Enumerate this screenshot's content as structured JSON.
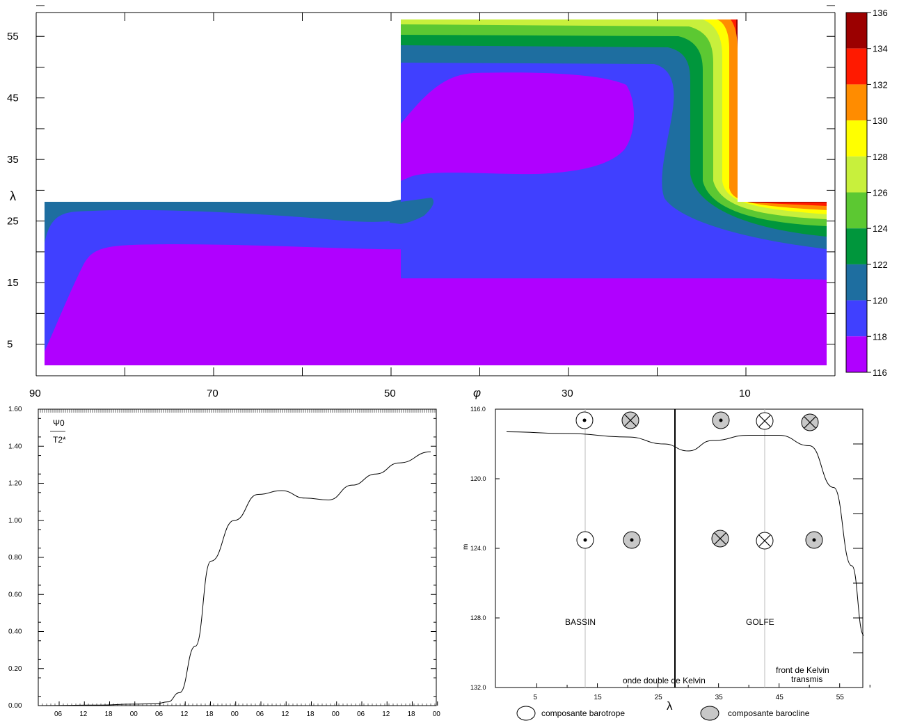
{
  "chart_data": [
    {
      "type": "heatmap",
      "title": "",
      "xlabel": "φ",
      "ylabel": "λ",
      "x_ticks": [
        "90",
        "70",
        "50",
        "30",
        "10"
      ],
      "y_ticks": [
        "55",
        "45",
        "35",
        "25",
        "15",
        "5"
      ],
      "xlim": [
        90,
        2
      ],
      "ylim": [
        1,
        60
      ],
      "colorbar": {
        "levels": [
          "136",
          "134",
          "132",
          "130",
          "128",
          "126",
          "124",
          "122",
          "120",
          "118",
          "116"
        ],
        "colors": [
          "#9b0000",
          "#ff1a00",
          "#ff8c00",
          "#ffff00",
          "#c8f03c",
          "#5cc832",
          "#00963c",
          "#1e6ea0",
          "#4040ff",
          "#b000ff"
        ]
      }
    },
    {
      "type": "line",
      "title": "",
      "ylabel_num": "Ψ0",
      "ylabel_den": "T2*",
      "ylim": [
        0,
        1.6
      ],
      "y_ticks": [
        "1.60",
        "1.40",
        "1.20",
        "1.00",
        "0.80",
        "0.60",
        "0.40",
        "0.20",
        "0.00"
      ],
      "x_ticks": [
        "06",
        "12",
        "18",
        "00",
        "06",
        "12",
        "18",
        "00",
        "06",
        "12",
        "18",
        "00",
        "06",
        "12",
        "18",
        "00"
      ],
      "series": [
        {
          "x": [
            0,
            8,
            12,
            15,
            16.5,
            18,
            20,
            22,
            25,
            28,
            31,
            34,
            37,
            40,
            43,
            46,
            50
          ],
          "y": [
            0.0,
            0.003,
            0.008,
            0.01,
            0.02,
            0.07,
            0.32,
            0.78,
            1.0,
            1.14,
            1.16,
            1.12,
            1.11,
            1.19,
            1.25,
            1.31,
            1.37
          ]
        }
      ]
    },
    {
      "type": "line",
      "title": "",
      "xlabel": "λ",
      "ylabel": "m",
      "ylim": [
        116,
        132
      ],
      "xlim": [
        0,
        60
      ],
      "y_ticks": [
        "116.0",
        "120.0",
        "124.0",
        "128.0",
        "132.0"
      ],
      "x_ticks": [
        "5",
        "15",
        "25",
        "35",
        "45",
        "55"
      ],
      "series": [
        {
          "x": [
            0,
            10,
            20,
            26,
            30,
            34,
            40,
            45,
            50,
            54,
            57,
            59
          ],
          "y": [
            117.3,
            117.4,
            117.6,
            118.0,
            118.4,
            117.8,
            117.5,
            117.5,
            118.1,
            120.5,
            125.0,
            129.0
          ]
        }
      ],
      "annotations": {
        "region_left": "BASSIN",
        "region_right": "GOLFE",
        "center_line": "onde double de Kelvin",
        "right_note_line1": "front de Kelvin",
        "right_note_line2": "transmis"
      },
      "legend": {
        "barotrope": "composante barotrope",
        "barocline": "composante barocline"
      }
    }
  ]
}
